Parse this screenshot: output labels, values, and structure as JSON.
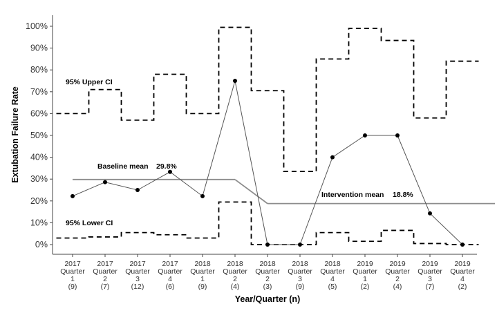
{
  "chart_data": {
    "type": "line",
    "ylabel": "Extubation Failure Rate",
    "xlabel": "Year/Quarter (n)",
    "ylim": [
      0,
      100
    ],
    "y_ticks": [
      "0%",
      "10%",
      "20%",
      "30%",
      "40%",
      "50%",
      "60%",
      "70%",
      "80%",
      "90%",
      "100%"
    ],
    "grid": false,
    "categories": [
      {
        "year": "2017",
        "quarter": "Quarter",
        "q": "1",
        "n": "(9)"
      },
      {
        "year": "2017",
        "quarter": "Quarter",
        "q": "2",
        "n": "(7)"
      },
      {
        "year": "2017",
        "quarter": "Quarter",
        "q": "3",
        "n": "(12)"
      },
      {
        "year": "2017",
        "quarter": "Quarter",
        "q": "4",
        "n": "(6)"
      },
      {
        "year": "2018",
        "quarter": "Quarter",
        "q": "1",
        "n": "(9)"
      },
      {
        "year": "2018",
        "quarter": "Quarter",
        "q": "2",
        "n": "(4)"
      },
      {
        "year": "2018",
        "quarter": "Quarter",
        "q": "2",
        "n": "(3)"
      },
      {
        "year": "2018",
        "quarter": "Quarter",
        "q": "3",
        "n": "(9)"
      },
      {
        "year": "2018",
        "quarter": "Quarter",
        "q": "4",
        "n": "(5)"
      },
      {
        "year": "2019",
        "quarter": "Quarter",
        "q": "1",
        "n": "(2)"
      },
      {
        "year": "2019",
        "quarter": "Quarter",
        "q": "2",
        "n": "(4)"
      },
      {
        "year": "2019",
        "quarter": "Quarter",
        "q": "3",
        "n": "(7)"
      },
      {
        "year": "2019",
        "quarter": "Quarter",
        "q": "4",
        "n": "(2)"
      }
    ],
    "series": [
      {
        "values": [
          22.2,
          28.6,
          25.0,
          33.3,
          22.2,
          75.0,
          0,
          0,
          40.0,
          50.0,
          50.0,
          14.3,
          0
        ]
      }
    ],
    "upper_ci": [
      60,
      71,
      57,
      78,
      60,
      99.5,
      70.5,
      33.5,
      85,
      99,
      93.5,
      58,
      84
    ],
    "lower_ci": [
      3,
      3.5,
      5.5,
      4.5,
      3,
      19.5,
      0,
      0,
      5.5,
      1.5,
      6.5,
      0.5,
      0
    ],
    "baseline": {
      "values": [
        29.8,
        29.8,
        29.8,
        29.8,
        29.8,
        29.8
      ],
      "x_start_index": 0
    },
    "intervention": {
      "values": [
        18.8,
        18.8,
        18.8,
        18.8,
        18.8,
        18.8,
        18.8,
        18.8
      ],
      "x_start_index": 6
    },
    "annotations": {
      "upper_ci": "95% Upper CI",
      "lower_ci": "95% Lower CI",
      "baseline_mean": "Baseline mean",
      "baseline_mean_value": "29.8%",
      "intervention_mean": "Intervention mean",
      "intervention_mean_value": "18.8%"
    },
    "colors": {
      "rate_line": "#555555",
      "mean_line": "#8c8c8c",
      "ci_line": "#000000",
      "point": "#000000"
    }
  }
}
